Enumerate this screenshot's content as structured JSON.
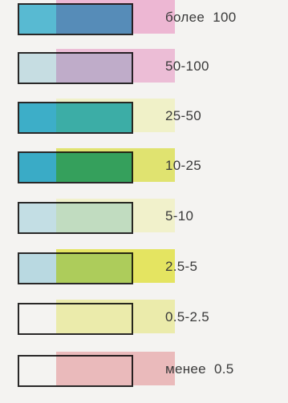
{
  "legend": {
    "items": [
      {
        "label": "более  100",
        "box_color": "#5cc3df",
        "overlay_color": "#eaa0c8"
      },
      {
        "label": "50-100",
        "box_color": "#cfe8f0",
        "overlay_color": "#e9a8cc"
      },
      {
        "label": "25-50",
        "box_color": "#3fb7d4",
        "overlay_color": "#eff0b8"
      },
      {
        "label": "10-25",
        "box_color": "#3cb4d2",
        "overlay_color": "#d8dc3e"
      },
      {
        "label": "5-10",
        "box_color": "#cce9f2",
        "overlay_color": "#f0f0bc"
      },
      {
        "label": "2.5-5",
        "box_color": "#c2e4ee",
        "overlay_color": "#dede2a"
      },
      {
        "label": "0.5-2.5",
        "box_color": "#ffffff",
        "overlay_color": "#e8e890"
      },
      {
        "label": "менее  0.5",
        "box_color": "#ffffff",
        "overlay_color": "#e6a3a6"
      }
    ]
  }
}
